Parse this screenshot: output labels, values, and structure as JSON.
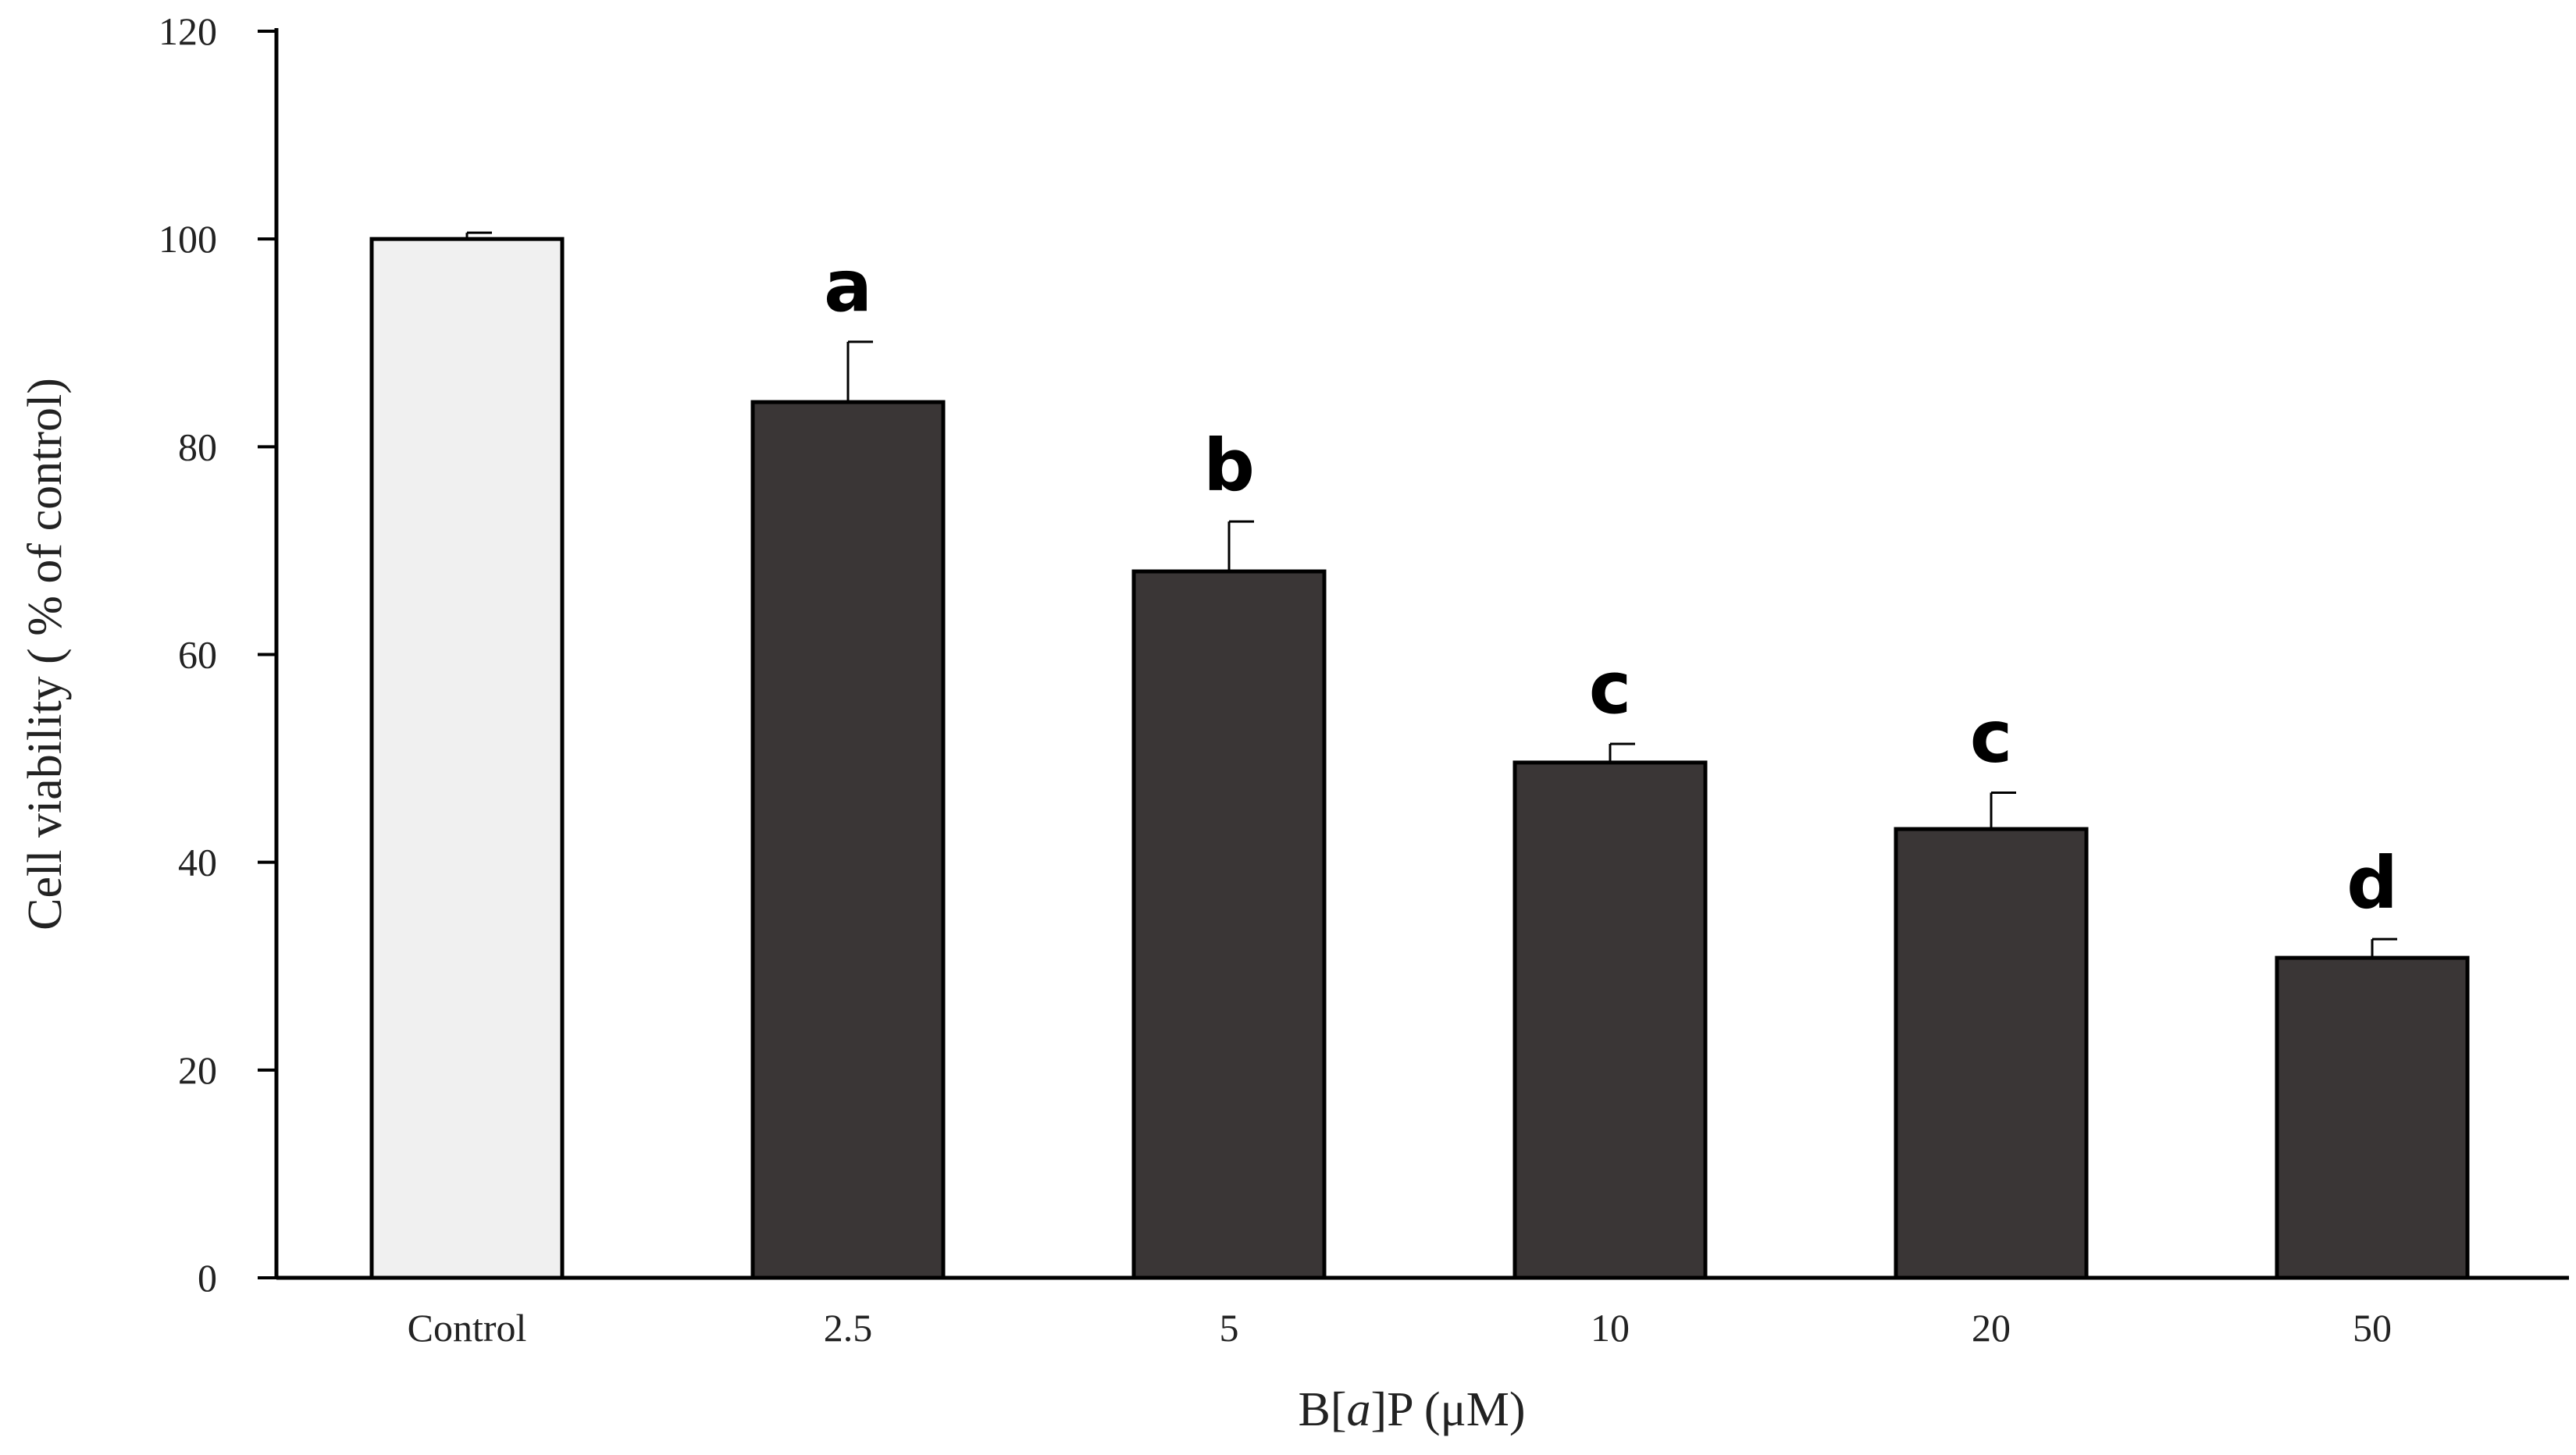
{
  "chart_data": {
    "type": "bar",
    "title": "",
    "xlabel_parts": [
      "B[",
      "a",
      "]P (μM)"
    ],
    "ylabel": "Cell viability ( % of control)",
    "ylim": [
      0,
      120
    ],
    "yticks": [
      0,
      20,
      40,
      60,
      80,
      100,
      120
    ],
    "grid": false,
    "legend": "none",
    "categories": [
      "Control",
      "2.5",
      "5",
      "10",
      "20",
      "50"
    ],
    "values": [
      100,
      84.3,
      68,
      49.6,
      43.2,
      30.8
    ],
    "errors": [
      0.6,
      5.8,
      4.8,
      1.8,
      3.5,
      1.8
    ],
    "significance": [
      "",
      "a",
      "b",
      "c",
      "c",
      "d"
    ],
    "bar_colors": [
      "#f0f0f0",
      "#3a3636",
      "#3a3636",
      "#3a3636",
      "#3a3636",
      "#3a3636"
    ],
    "outline_color": "#000000"
  }
}
